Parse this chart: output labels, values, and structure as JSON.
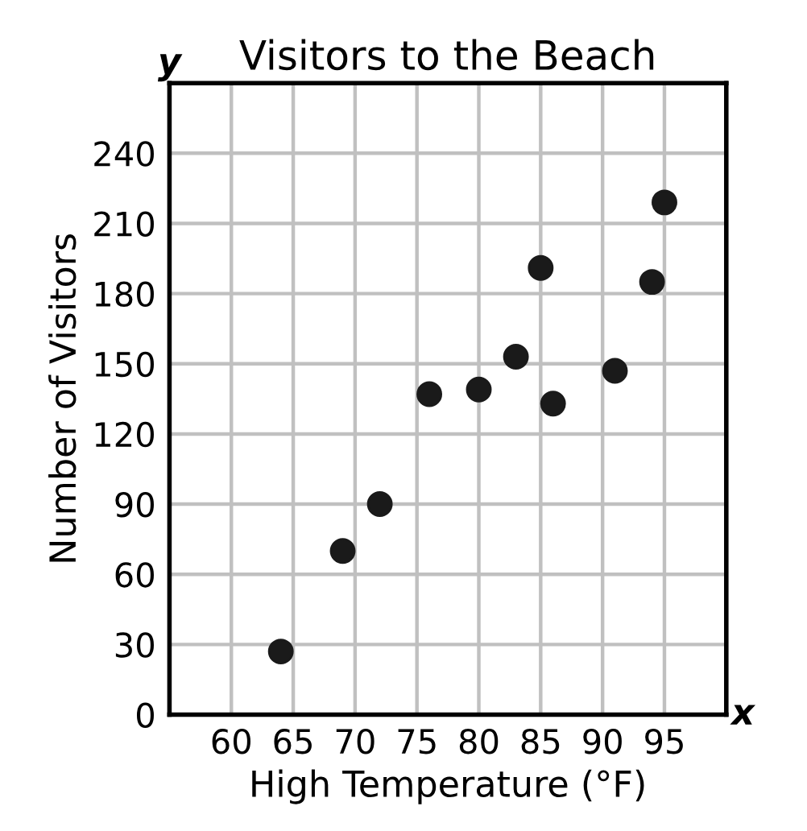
{
  "chart_data": {
    "type": "scatter",
    "title": "Visitors to the Beach",
    "xlabel": "High Temperature (°F)",
    "ylabel": "Number of Visitors",
    "x": [
      64,
      69,
      72,
      76,
      80,
      83,
      85,
      86,
      91,
      94,
      95
    ],
    "values": [
      27,
      70,
      90,
      137,
      139,
      153,
      191,
      133,
      147,
      185,
      219
    ],
    "color": "#1a1a1a",
    "marker": "circle",
    "xlim": [
      55,
      100
    ],
    "xticks": [
      60,
      65,
      70,
      75,
      80,
      85,
      90,
      95
    ],
    "ylim": [
      0,
      270
    ],
    "yticks": [
      0,
      30,
      60,
      90,
      120,
      150,
      180,
      210,
      240
    ],
    "grid": true,
    "annotations": [
      "x",
      "y"
    ]
  }
}
